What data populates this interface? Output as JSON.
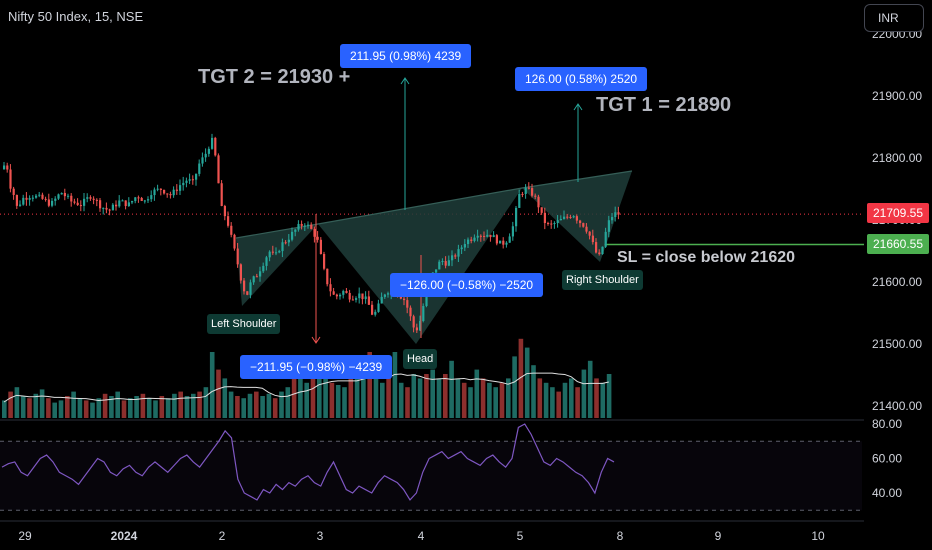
{
  "header": {
    "symbol_title": "Nifty 50 Index, 15, NSE",
    "currency": "INR"
  },
  "colors": {
    "up": "#26a69a",
    "down": "#ef5350",
    "rsi": "#7e57c2",
    "pattern_fill": "#1e3d39",
    "annotation_blue": "#2962ff",
    "sl_line": "#4caf50"
  },
  "chart_data": [
    {
      "type": "candlestick",
      "title": "Nifty 50 Index, 15, NSE",
      "y_axis_ticks": [
        "21400.00",
        "21500.00",
        "21600.00",
        "21700.00",
        "21800.00",
        "21900.00",
        "22000.00"
      ],
      "x_axis_ticks": [
        "29",
        "2024",
        "2",
        "3",
        "4",
        "5",
        "8",
        "9",
        "10"
      ],
      "ylim": [
        21380,
        22000
      ],
      "price_tags": [
        {
          "label": "21709.55",
          "value": 21709.55,
          "color": "#f23645"
        },
        {
          "label": "21660.55",
          "value": 21660.55,
          "color": "#4caf50"
        }
      ],
      "close_path": [
        [
          0,
          21770
        ],
        [
          5,
          21800
        ],
        [
          8,
          21760
        ],
        [
          12,
          21745
        ],
        [
          16,
          21720
        ],
        [
          22,
          21735
        ],
        [
          30,
          21740
        ],
        [
          40,
          21735
        ],
        [
          50,
          21725
        ],
        [
          60,
          21745
        ],
        [
          70,
          21730
        ],
        [
          80,
          21725
        ],
        [
          90,
          21740
        ],
        [
          100,
          21722
        ],
        [
          108,
          21715
        ],
        [
          118,
          21730
        ],
        [
          128,
          21725
        ],
        [
          136,
          21740
        ],
        [
          144,
          21730
        ],
        [
          150,
          21745
        ],
        [
          160,
          21750
        ],
        [
          170,
          21740
        ],
        [
          178,
          21755
        ],
        [
          186,
          21765
        ],
        [
          192,
          21760
        ],
        [
          198,
          21790
        ],
        [
          204,
          21805
        ],
        [
          208,
          21820
        ],
        [
          212,
          21830
        ],
        [
          216,
          21780
        ],
        [
          220,
          21720
        ],
        [
          226,
          21700
        ],
        [
          232,
          21660
        ],
        [
          238,
          21620
        ],
        [
          242,
          21590
        ],
        [
          246,
          21580
        ],
        [
          250,
          21600
        ],
        [
          256,
          21612
        ],
        [
          262,
          21630
        ],
        [
          268,
          21650
        ],
        [
          274,
          21640
        ],
        [
          280,
          21660
        ],
        [
          286,
          21668
        ],
        [
          292,
          21680
        ],
        [
          298,
          21690
        ],
        [
          304,
          21695
        ],
        [
          310,
          21685
        ],
        [
          316,
          21670
        ],
        [
          320,
          21640
        ],
        [
          324,
          21610
        ],
        [
          328,
          21590
        ],
        [
          334,
          21575
        ],
        [
          342,
          21585
        ],
        [
          350,
          21575
        ],
        [
          358,
          21580
        ],
        [
          366,
          21570
        ],
        [
          372,
          21545
        ],
        [
          376,
          21555
        ],
        [
          382,
          21580
        ],
        [
          390,
          21590
        ],
        [
          398,
          21580
        ],
        [
          404,
          21570
        ],
        [
          410,
          21540
        ],
        [
          414,
          21520
        ],
        [
          418,
          21530
        ],
        [
          422,
          21560
        ],
        [
          428,
          21600
        ],
        [
          434,
          21620
        ],
        [
          440,
          21635
        ],
        [
          446,
          21630
        ],
        [
          452,
          21640
        ],
        [
          458,
          21650
        ],
        [
          464,
          21665
        ],
        [
          470,
          21670
        ],
        [
          476,
          21680
        ],
        [
          482,
          21675
        ],
        [
          488,
          21678
        ],
        [
          494,
          21670
        ],
        [
          500,
          21660
        ],
        [
          506,
          21668
        ],
        [
          512,
          21690
        ],
        [
          518,
          21740
        ],
        [
          524,
          21750
        ],
        [
          530,
          21745
        ],
        [
          536,
          21730
        ],
        [
          542,
          21700
        ],
        [
          548,
          21690
        ],
        [
          554,
          21695
        ],
        [
          560,
          21700
        ],
        [
          566,
          21705
        ],
        [
          572,
          21710
        ],
        [
          578,
          21698
        ],
        [
          584,
          21690
        ],
        [
          590,
          21670
        ],
        [
          594,
          21650
        ],
        [
          598,
          21640
        ],
        [
          602,
          21660
        ],
        [
          606,
          21690
        ],
        [
          610,
          21705
        ],
        [
          614,
          21710
        ],
        [
          618,
          21709.55
        ]
      ],
      "annotations": [
        {
          "kind": "big",
          "text": "TGT 2 = 21930 +"
        },
        {
          "kind": "big",
          "text": "TGT 1 = 21890"
        },
        {
          "kind": "mid",
          "text": "SL = close below 21620"
        },
        {
          "kind": "blue",
          "text": "211.95 (0.98%) 4239"
        },
        {
          "kind": "blue",
          "text": "126.00 (0.58%) 2520"
        },
        {
          "kind": "blue",
          "text": "−126.00 (−0.58%) −2520"
        },
        {
          "kind": "blue",
          "text": "−211.95 (−0.98%) −4239"
        },
        {
          "kind": "label",
          "text": "Left Shoulder"
        },
        {
          "kind": "label",
          "text": "Head"
        },
        {
          "kind": "label",
          "text": "Right Shoulder"
        }
      ]
    },
    {
      "type": "line",
      "title": "",
      "y_axis_ticks": [
        "80.00",
        "60.00",
        "40.00"
      ],
      "ylim": [
        30,
        85
      ],
      "bands": [
        70,
        30
      ],
      "values": [
        55,
        57,
        58,
        52,
        50,
        55,
        60,
        62,
        58,
        52,
        50,
        48,
        45,
        50,
        55,
        60,
        58,
        52,
        50,
        54,
        56,
        52,
        50,
        55,
        58,
        55,
        52,
        56,
        60,
        62,
        58,
        55,
        60,
        65,
        70,
        76,
        72,
        48,
        40,
        38,
        36,
        42,
        40,
        45,
        42,
        46,
        44,
        48,
        50,
        46,
        44,
        52,
        58,
        50,
        42,
        40,
        44,
        42,
        40,
        46,
        50,
        48,
        46,
        42,
        36,
        40,
        52,
        60,
        62,
        64,
        60,
        62,
        64,
        60,
        58,
        56,
        60,
        62,
        58,
        55,
        60,
        78,
        80,
        74,
        66,
        58,
        56,
        60,
        58,
        55,
        52,
        50,
        46,
        40,
        52,
        60,
        58
      ]
    },
    {
      "type": "bar",
      "title": "",
      "values": [
        8,
        12,
        14,
        10,
        9,
        11,
        13,
        9,
        7,
        8,
        10,
        12,
        9,
        8,
        7,
        9,
        11,
        10,
        12,
        8,
        9,
        10,
        11,
        9,
        8,
        10,
        9,
        11,
        12,
        10,
        11,
        12,
        14,
        30,
        22,
        18,
        12,
        10,
        9,
        11,
        12,
        10,
        11,
        9,
        12,
        14,
        20,
        18,
        16,
        22,
        28,
        18,
        16,
        15,
        14,
        20,
        18,
        24,
        30,
        26,
        16,
        18,
        30,
        16,
        14,
        20,
        18,
        20,
        22,
        18,
        20,
        26,
        18,
        16,
        14,
        22,
        18,
        16,
        14,
        16,
        18,
        28,
        36,
        32,
        24,
        18,
        16,
        14,
        12,
        16,
        18,
        14,
        22,
        26,
        18,
        16,
        20
      ]
    }
  ]
}
